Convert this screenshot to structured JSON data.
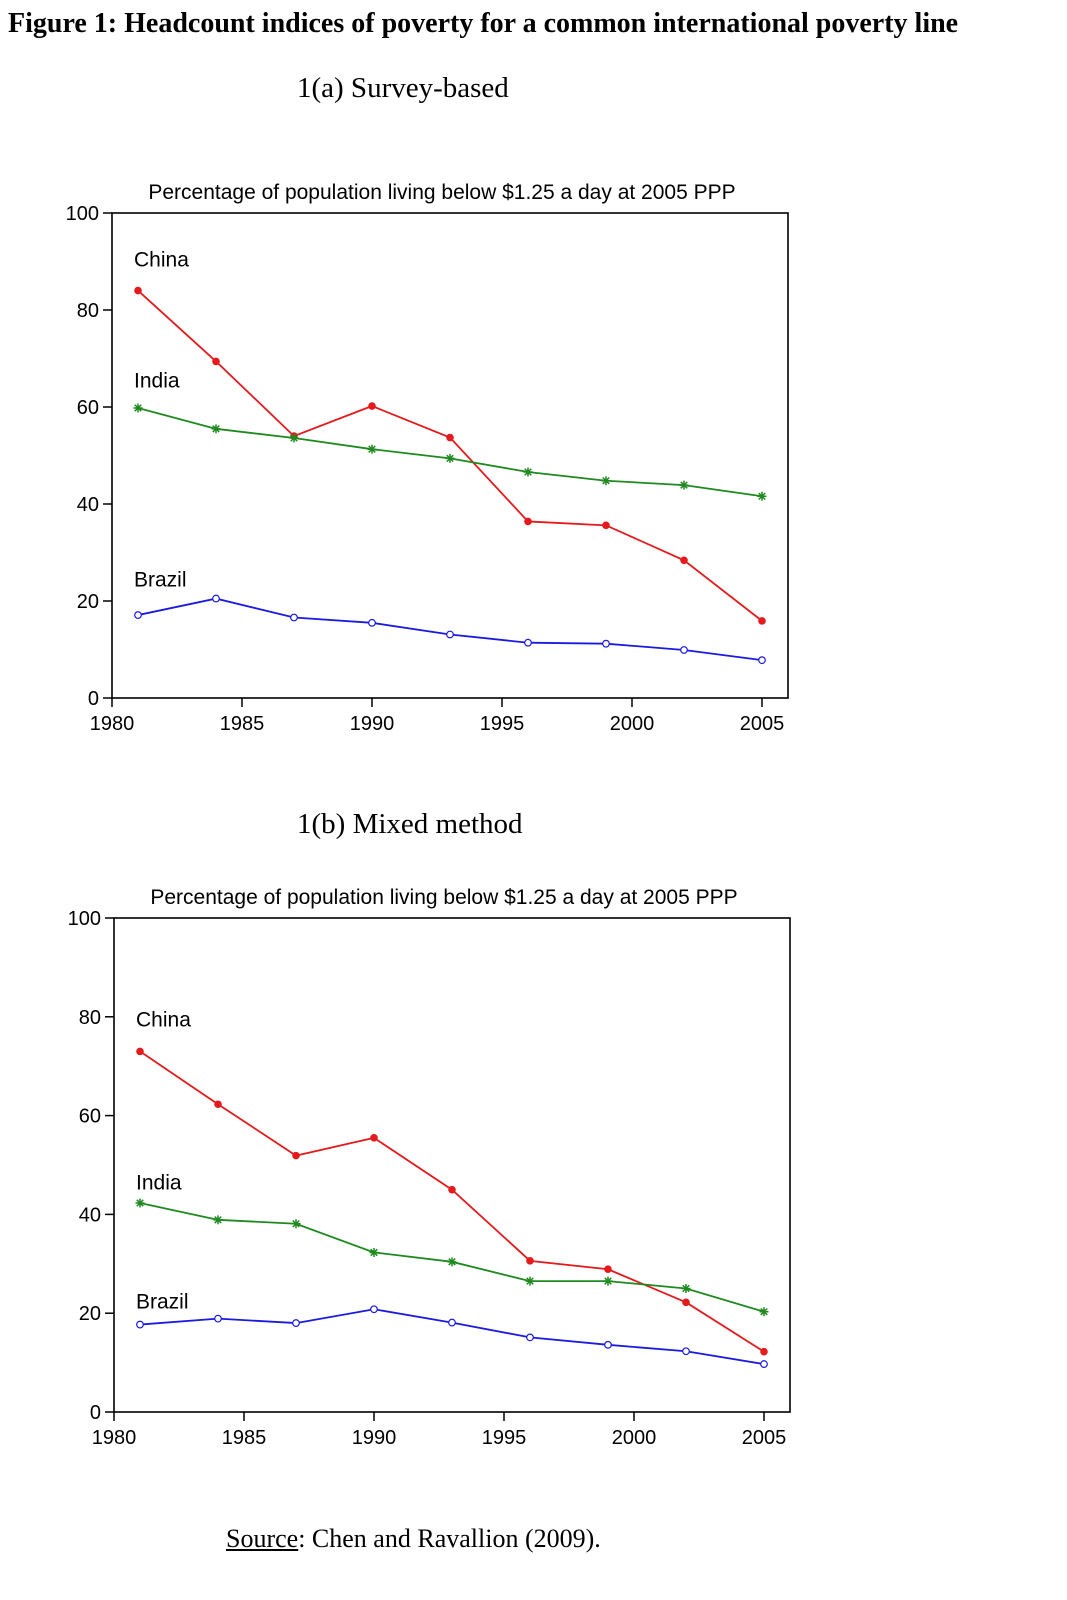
{
  "figure_title": "Figure 1: Headcount indices of poverty for a common international poverty line",
  "panels": [
    {
      "title": "1(a) Survey-based"
    },
    {
      "title": "1(b) Mixed method"
    }
  ],
  "source": {
    "label": "Source",
    "text": ": Chen and Ravallion (2009)."
  },
  "colors": {
    "China": "#e41a1c",
    "India": "#1f8a1f",
    "Brazil": "#1a1ae0"
  },
  "chart_data": [
    {
      "type": "line",
      "title": "Percentage of population living below $1.25 a day at 2005 PPP",
      "xlabel": "",
      "ylabel": "",
      "xlim": [
        1980,
        2006
      ],
      "ylim": [
        0,
        100
      ],
      "xticks": [
        1980,
        1985,
        1990,
        1995,
        2000,
        2005
      ],
      "yticks": [
        0,
        20,
        40,
        60,
        80,
        100
      ],
      "x": [
        1981,
        1984,
        1987,
        1990,
        1993,
        1996,
        1999,
        2002,
        2005
      ],
      "series": [
        {
          "name": "China",
          "marker": "filled-circle",
          "values": [
            84.0,
            69.4,
            54.0,
            60.2,
            53.7,
            36.4,
            35.6,
            28.4,
            15.9
          ]
        },
        {
          "name": "India",
          "marker": "asterisk",
          "values": [
            59.8,
            55.5,
            53.6,
            51.3,
            49.4,
            46.6,
            44.8,
            43.9,
            41.6
          ]
        },
        {
          "name": "Brazil",
          "marker": "open-circle",
          "values": [
            17.1,
            20.5,
            16.6,
            15.5,
            13.1,
            11.4,
            11.2,
            9.9,
            7.8
          ]
        }
      ],
      "series_labels": [
        {
          "name": "China",
          "text": "China",
          "x": 1981,
          "y": 89
        },
        {
          "name": "India",
          "text": "India",
          "x": 1981,
          "y": 64
        },
        {
          "name": "Brazil",
          "text": "Brazil",
          "x": 1981,
          "y": 23
        }
      ]
    },
    {
      "type": "line",
      "title": "Percentage of population living below $1.25 a day at 2005 PPP",
      "xlabel": "",
      "ylabel": "",
      "xlim": [
        1980,
        2006
      ],
      "ylim": [
        0,
        100
      ],
      "xticks": [
        1980,
        1985,
        1990,
        1995,
        2000,
        2005
      ],
      "yticks": [
        0,
        20,
        40,
        60,
        80,
        100
      ],
      "x": [
        1981,
        1984,
        1987,
        1990,
        1993,
        1996,
        1999,
        2002,
        2005
      ],
      "series": [
        {
          "name": "China",
          "marker": "filled-circle",
          "values": [
            73.0,
            62.3,
            51.9,
            55.5,
            45.0,
            30.6,
            28.9,
            22.2,
            12.2
          ]
        },
        {
          "name": "India",
          "marker": "asterisk",
          "values": [
            42.3,
            38.9,
            38.1,
            32.3,
            30.4,
            26.5,
            26.5,
            25.0,
            20.3
          ]
        },
        {
          "name": "Brazil",
          "marker": "open-circle",
          "values": [
            17.7,
            18.9,
            18.0,
            20.8,
            18.1,
            15.1,
            13.6,
            12.3,
            9.7
          ]
        }
      ],
      "series_labels": [
        {
          "name": "China",
          "text": "China",
          "x": 1981,
          "y": 78
        },
        {
          "name": "India",
          "text": "India",
          "x": 1981,
          "y": 45
        },
        {
          "name": "Brazil",
          "text": "Brazil",
          "x": 1981,
          "y": 21
        }
      ]
    }
  ]
}
